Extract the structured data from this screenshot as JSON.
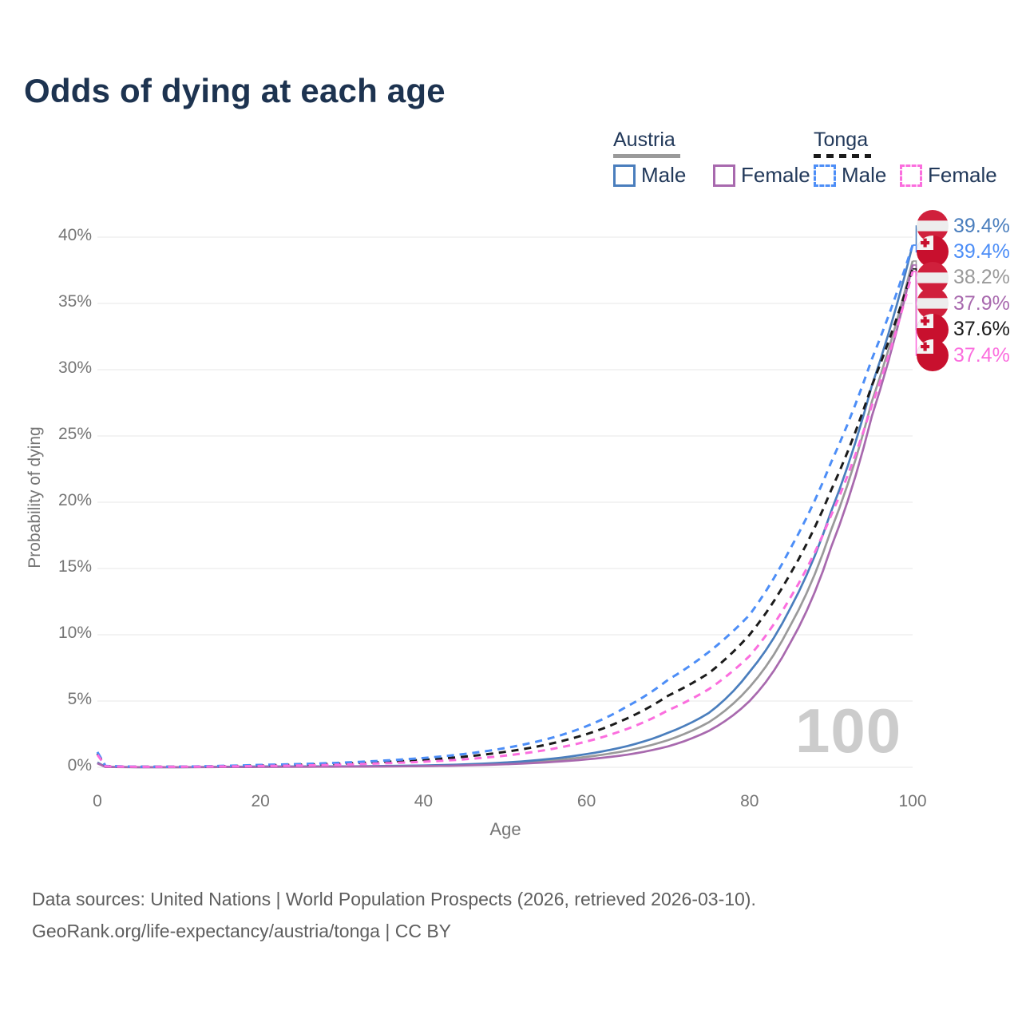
{
  "title": "Odds of dying at each age",
  "watermark": "100",
  "colors": {
    "title_text": "#1d3350",
    "legend_text": "#22395a",
    "austria_male": "#4a7ebd",
    "austria_female": "#a869ae",
    "austria_both": "#9a9a9a",
    "tonga_male": "#4d8ef7",
    "tonga_female": "#fb6ede",
    "tonga_both": "#1b1b1b",
    "grid": "#ececec",
    "axis_text": "#757575",
    "watermark_text": "#cccccc",
    "flag_red_austria": "#d0203c",
    "flag_red_tonga": "#c8102e"
  },
  "legend": {
    "austria": {
      "title": "Austria",
      "male": "Male",
      "female": "Female"
    },
    "tonga": {
      "title": "Tonga",
      "male": "Male",
      "female": "Female"
    }
  },
  "chart_data": {
    "type": "line",
    "title": "Odds of dying at each age",
    "xlabel": "Age",
    "ylabel": "Probability of dying",
    "xlim": [
      0,
      100
    ],
    "ylim": [
      0,
      41
    ],
    "x_ticks": [
      0,
      20,
      40,
      60,
      80,
      100
    ],
    "y_ticks": [
      "0%",
      "5%",
      "10%",
      "15%",
      "20%",
      "25%",
      "30%",
      "35%",
      "40%"
    ],
    "grid": "horizontal",
    "legend_position": "top-right",
    "ages": [
      0,
      1,
      5,
      10,
      15,
      20,
      25,
      30,
      35,
      40,
      45,
      50,
      55,
      60,
      65,
      70,
      75,
      80,
      85,
      90,
      95,
      100
    ],
    "series": [
      {
        "name": "Austria Both sexes",
        "key": "austria_both",
        "style": "solid",
        "values": [
          0.33,
          0.026,
          0.01,
          0.01,
          0.022,
          0.046,
          0.05,
          0.058,
          0.08,
          0.115,
          0.18,
          0.29,
          0.48,
          0.79,
          1.26,
          2.05,
          3.4,
          6.05,
          10.7,
          17.9,
          27.6,
          38.2
        ],
        "end_value_pct": 38.2
      },
      {
        "name": "Austria Male",
        "key": "austria_male",
        "style": "solid",
        "values": [
          0.36,
          0.03,
          0.012,
          0.012,
          0.03,
          0.06,
          0.062,
          0.07,
          0.1,
          0.14,
          0.22,
          0.36,
          0.6,
          1.0,
          1.6,
          2.6,
          4.1,
          7.2,
          12.0,
          19.3,
          28.8,
          39.4
        ],
        "end_value_pct": 39.4
      },
      {
        "name": "Austria Female",
        "key": "austria_female",
        "style": "solid",
        "values": [
          0.3,
          0.022,
          0.009,
          0.009,
          0.016,
          0.03,
          0.036,
          0.046,
          0.062,
          0.09,
          0.14,
          0.23,
          0.37,
          0.6,
          0.95,
          1.58,
          2.75,
          5.0,
          9.4,
          16.6,
          26.5,
          37.9
        ],
        "end_value_pct": 37.9
      },
      {
        "name": "Tonga Both sexes",
        "key": "tonga_both",
        "style": "dashed",
        "values": [
          1.05,
          0.09,
          0.042,
          0.042,
          0.082,
          0.14,
          0.2,
          0.28,
          0.4,
          0.56,
          0.8,
          1.16,
          1.7,
          2.5,
          3.7,
          5.4,
          7.1,
          10.0,
          14.6,
          20.9,
          28.8,
          37.6
        ],
        "end_value_pct": 37.6
      },
      {
        "name": "Tonga Male",
        "key": "tonga_male",
        "style": "dashed",
        "values": [
          1.15,
          0.1,
          0.05,
          0.05,
          0.1,
          0.18,
          0.25,
          0.35,
          0.5,
          0.7,
          1.0,
          1.45,
          2.1,
          3.1,
          4.6,
          6.6,
          8.7,
          11.5,
          16.5,
          23.0,
          30.8,
          39.4
        ],
        "end_value_pct": 39.4
      },
      {
        "name": "Tonga Female",
        "key": "tonga_female",
        "style": "dashed",
        "values": [
          0.95,
          0.08,
          0.036,
          0.036,
          0.065,
          0.1,
          0.14,
          0.2,
          0.3,
          0.42,
          0.6,
          0.88,
          1.3,
          1.95,
          2.9,
          4.3,
          5.9,
          8.4,
          12.8,
          19.0,
          27.3,
          37.4
        ],
        "end_value_pct": 37.4
      }
    ]
  },
  "end_labels": [
    {
      "flag": "austria",
      "series": "austria_male",
      "text": "39.4%"
    },
    {
      "flag": "tonga",
      "series": "tonga_male",
      "text": "39.4%"
    },
    {
      "flag": "austria",
      "series": "austria_both",
      "text": "38.2%"
    },
    {
      "flag": "austria",
      "series": "austria_female",
      "text": "37.9%"
    },
    {
      "flag": "tonga",
      "series": "tonga_both",
      "text": "37.6%"
    },
    {
      "flag": "tonga",
      "series": "tonga_female",
      "text": "37.4%"
    }
  ],
  "footer": {
    "line1": "Data sources: United Nations | World Population Prospects (2026, retrieved 2026-03-10).",
    "line2": "GeoRank.org/life-expectancy/austria/tonga | CC BY"
  }
}
